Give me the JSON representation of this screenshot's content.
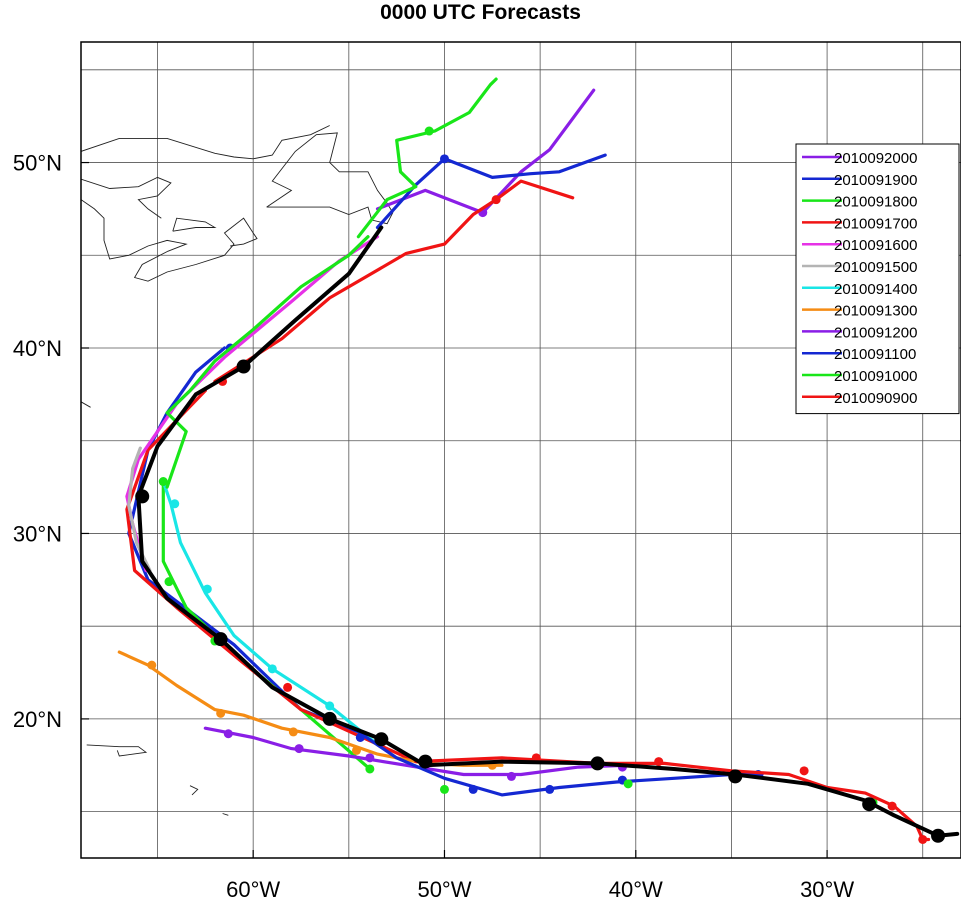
{
  "chart_data": {
    "type": "line",
    "title": "0000 UTC Forecasts",
    "xlim": [
      -69,
      -23
    ],
    "ylim": [
      12.5,
      56.5
    ],
    "x_ticks": [
      {
        "value": -60,
        "label": "60°W"
      },
      {
        "value": -50,
        "label": "50°W"
      },
      {
        "value": -40,
        "label": "40°W"
      },
      {
        "value": -30,
        "label": "30°W"
      }
    ],
    "y_ticks": [
      {
        "value": 20,
        "label": "20°N"
      },
      {
        "value": 30,
        "label": "30°N"
      },
      {
        "value": 40,
        "label": "40°N"
      },
      {
        "value": 50,
        "label": "50°N"
      }
    ],
    "grid": true,
    "legend_position": "top-right",
    "series": [
      {
        "name": "2010092000",
        "color": "#8a1ee6",
        "points": [
          [
            -53.5,
            47.5
          ],
          [
            -51,
            48.5
          ],
          [
            -48,
            47.3
          ],
          [
            -46,
            49.5
          ],
          [
            -44.5,
            50.7
          ],
          [
            -42.2,
            53.9
          ]
        ],
        "markers": [
          [
            -48,
            47.3
          ]
        ]
      },
      {
        "name": "2010091900",
        "color": "#1428d2",
        "points": [
          [
            -53.5,
            46.5
          ],
          [
            -51.5,
            48.8
          ],
          [
            -50,
            50.2
          ],
          [
            -47.5,
            49.2
          ],
          [
            -45.5,
            49.4
          ],
          [
            -44,
            49.5
          ],
          [
            -41.6,
            50.4
          ]
        ],
        "markers": [
          [
            -50,
            50.2
          ]
        ]
      },
      {
        "name": "2010091800",
        "color": "#19e619",
        "points": [
          [
            -54.5,
            46
          ],
          [
            -53,
            48
          ],
          [
            -51.5,
            48.7
          ],
          [
            -52.3,
            49.5
          ],
          [
            -52.5,
            51.2
          ],
          [
            -50.5,
            51.7
          ],
          [
            -48.7,
            52.7
          ],
          [
            -47.6,
            54.2
          ],
          [
            -47.3,
            54.5
          ]
        ],
        "markers": [
          [
            -50.8,
            51.7
          ]
        ]
      },
      {
        "name": "2010091700",
        "color": "#f01414",
        "points": [
          [
            -62,
            38.2
          ],
          [
            -58.5,
            40.5
          ],
          [
            -56,
            42.7
          ],
          [
            -52,
            45.1
          ],
          [
            -50,
            45.6
          ],
          [
            -48.5,
            47.2
          ],
          [
            -47.3,
            48
          ],
          [
            -46,
            49
          ],
          [
            -43.3,
            48.1
          ]
        ],
        "markers": [
          [
            -61.6,
            38.2
          ],
          [
            -47.3,
            48
          ]
        ]
      },
      {
        "name": "2010091600",
        "color": "#e632e6",
        "points": [
          [
            -66.3,
            30.5
          ],
          [
            -66.6,
            32
          ],
          [
            -66,
            34
          ],
          [
            -64,
            37
          ],
          [
            -61.5,
            39.5
          ],
          [
            -58,
            42.5
          ],
          [
            -55.5,
            44.7
          ],
          [
            -53.5,
            46
          ]
        ],
        "markers": []
      },
      {
        "name": "2010091500",
        "color": "#b4b4b4",
        "points": [
          [
            -65.4,
            28
          ],
          [
            -66.1,
            29.5
          ],
          [
            -66.5,
            31.5
          ],
          [
            -66.3,
            33.5
          ],
          [
            -65.9,
            34.6
          ]
        ],
        "markers": []
      },
      {
        "name": "2010091400",
        "color": "#19e6e6",
        "points": [
          [
            -53.6,
            18.7
          ],
          [
            -56,
            20.7
          ],
          [
            -59,
            22.7
          ],
          [
            -61,
            24.5
          ],
          [
            -62.5,
            26.8
          ],
          [
            -63.8,
            29.5
          ],
          [
            -64.3,
            31.6
          ],
          [
            -64.7,
            32.8
          ]
        ],
        "markers": [
          [
            -56,
            20.7
          ],
          [
            -59,
            22.7
          ],
          [
            -62.4,
            27
          ],
          [
            -64.1,
            31.6
          ]
        ]
      },
      {
        "name": "2010091300",
        "color": "#f58c14",
        "points": [
          [
            -67,
            23.6
          ],
          [
            -65.5,
            22.9
          ],
          [
            -64,
            21.8
          ],
          [
            -62,
            20.5
          ],
          [
            -60.5,
            20.2
          ],
          [
            -58.5,
            19.5
          ],
          [
            -56,
            19
          ],
          [
            -53.5,
            18.1
          ],
          [
            -51,
            17.6
          ],
          [
            -49,
            17.5
          ],
          [
            -47,
            17.5
          ]
        ],
        "markers": [
          [
            -65.3,
            22.9
          ],
          [
            -61.7,
            20.3
          ],
          [
            -57.9,
            19.3
          ],
          [
            -54.6,
            18.3
          ],
          [
            -47.5,
            17.5
          ]
        ]
      },
      {
        "name": "2010091200",
        "color": "#8a1ee6",
        "points": [
          [
            -62.5,
            19.5
          ],
          [
            -60,
            19
          ],
          [
            -58,
            18.4
          ],
          [
            -55,
            18
          ],
          [
            -52,
            17.5
          ],
          [
            -49,
            17
          ],
          [
            -46,
            17
          ],
          [
            -43,
            17.4
          ],
          [
            -40.5,
            17.5
          ]
        ],
        "markers": [
          [
            -61.3,
            19.2
          ],
          [
            -57.6,
            18.4
          ],
          [
            -53.9,
            17.9
          ],
          [
            -46.5,
            16.9
          ],
          [
            -40.7,
            17.4
          ]
        ]
      },
      {
        "name": "2010091100",
        "color": "#1428d2",
        "points": [
          [
            -54.5,
            19.3
          ],
          [
            -52.5,
            17.9
          ],
          [
            -50,
            16.8
          ],
          [
            -47,
            15.9
          ],
          [
            -44,
            16.3
          ],
          [
            -41,
            16.6
          ],
          [
            -38,
            16.8
          ],
          [
            -35,
            17
          ],
          [
            -33.4,
            17
          ]
        ],
        "markers": [
          [
            -54.4,
            19
          ],
          [
            -48.5,
            16.2
          ],
          [
            -44.5,
            16.2
          ],
          [
            -40.7,
            16.7
          ],
          [
            -33.6,
            17
          ]
        ]
      },
      {
        "name": "2010091000",
        "color": "#19e619",
        "points": [
          [
            -64.5,
            32.5
          ],
          [
            -63.5,
            35.5
          ],
          [
            -64.5,
            36.5
          ],
          [
            -63.3,
            37.7
          ],
          [
            -62,
            39.3
          ],
          [
            -60,
            41
          ],
          [
            -57.5,
            43.3
          ],
          [
            -55,
            45
          ],
          [
            -54,
            46
          ]
        ],
        "markers": [
          [
            -64.7,
            32.8
          ],
          [
            -64.4,
            27.4
          ],
          [
            -62,
            24.2
          ],
          [
            -53.9,
            17.3
          ],
          [
            -50,
            16.2
          ],
          [
            -40.4,
            16.5
          ],
          [
            -27.6,
            15.5
          ]
        ]
      },
      {
        "name": "2010090900",
        "color": "#f01414",
        "points": [
          [
            -51.5,
            17.7
          ],
          [
            -47,
            17.9
          ],
          [
            -42,
            17.6
          ],
          [
            -38.5,
            17.6
          ],
          [
            -35,
            17.2
          ],
          [
            -32,
            17
          ],
          [
            -30,
            16.3
          ],
          [
            -28,
            16
          ],
          [
            -26.5,
            15.3
          ],
          [
            -25.3,
            14.2
          ],
          [
            -25,
            13.5
          ],
          [
            -24.7,
            13.5
          ]
        ],
        "markers": [
          [
            -51,
            17.7
          ],
          [
            -45.2,
            17.9
          ],
          [
            -38.8,
            17.7
          ],
          [
            -31.2,
            17.2
          ],
          [
            -26.6,
            15.3
          ],
          [
            -25,
            13.5
          ]
        ]
      }
    ],
    "extra_tracks": [
      {
        "series": "2010091100",
        "points": [
          [
            -54.5,
            19.3
          ],
          [
            -57.5,
            20.5
          ],
          [
            -61,
            24
          ],
          [
            -65.5,
            27.5
          ],
          [
            -66.5,
            30
          ],
          [
            -65.5,
            34.5
          ],
          [
            -64.5,
            36.5
          ],
          [
            -63,
            38.7
          ],
          [
            -61.5,
            40
          ]
        ],
        "markers": [
          [
            -61.2,
            40
          ]
        ]
      },
      {
        "series": "2010091000",
        "points": [
          [
            -53.9,
            17.3
          ],
          [
            -57.5,
            20.5
          ],
          [
            -61,
            23.5
          ],
          [
            -63.5,
            26
          ],
          [
            -64.7,
            28.5
          ],
          [
            -64.7,
            32.8
          ]
        ],
        "markers": []
      },
      {
        "series": "2010090900",
        "points": [
          [
            -51.5,
            17.7
          ],
          [
            -57.5,
            20.5
          ],
          [
            -60.5,
            23
          ],
          [
            -64,
            26
          ],
          [
            -66.2,
            28
          ],
          [
            -66.6,
            31.3
          ],
          [
            -65.5,
            34.5
          ],
          [
            -62.5,
            37.7
          ]
        ],
        "markers": [
          [
            -58.2,
            21.7
          ]
        ]
      },
      {
        "series": "2010091600",
        "points": [
          [
            -66.3,
            30.5
          ],
          [
            -65.6,
            28
          ]
        ],
        "markers": []
      }
    ],
    "best_track": {
      "color": "#000000",
      "points": [
        [
          -23.2,
          13.8
        ],
        [
          -24.2,
          13.7
        ],
        [
          -26.5,
          14.8
        ],
        [
          -28,
          15.6
        ],
        [
          -31,
          16.5
        ],
        [
          -34.8,
          17
        ],
        [
          -38,
          17.3
        ],
        [
          -42,
          17.6
        ],
        [
          -47,
          17.7
        ],
        [
          -51,
          17.5
        ],
        [
          -53.3,
          18.9
        ],
        [
          -56,
          20
        ],
        [
          -59,
          21.7
        ],
        [
          -61.7,
          24.3
        ],
        [
          -64.5,
          26.5
        ],
        [
          -65.8,
          28.5
        ],
        [
          -66,
          32
        ],
        [
          -65,
          34.7
        ],
        [
          -63,
          37.5
        ],
        [
          -60.5,
          39
        ],
        [
          -57.8,
          41.5
        ],
        [
          -55,
          44
        ],
        [
          -53.3,
          46.5
        ]
      ],
      "markers": [
        [
          -24.2,
          13.7
        ],
        [
          -27.8,
          15.4
        ],
        [
          -34.8,
          16.9
        ],
        [
          -42,
          17.6
        ],
        [
          -51,
          17.7
        ],
        [
          -53.3,
          18.9
        ],
        [
          -56,
          20
        ],
        [
          -61.7,
          24.3
        ],
        [
          -65.8,
          32
        ],
        [
          -60.5,
          39
        ]
      ]
    },
    "coastlines": [
      [
        [
          -69,
          50.6
        ],
        [
          -67,
          51.3
        ],
        [
          -64.5,
          51.3
        ],
        [
          -62,
          50.5
        ],
        [
          -61,
          50.3
        ],
        [
          -60,
          50.2
        ],
        [
          -59,
          50.4
        ],
        [
          -58.5,
          51.2
        ],
        [
          -57,
          51.5
        ],
        [
          -56,
          52
        ]
      ],
      [
        [
          -69,
          49.1
        ],
        [
          -67.5,
          48.6
        ],
        [
          -66,
          48.7
        ],
        [
          -65,
          49.2
        ],
        [
          -64.3,
          48.9
        ],
        [
          -65,
          48.2
        ],
        [
          -66,
          48
        ],
        [
          -65.5,
          47.5
        ],
        [
          -64.8,
          47
        ]
      ],
      [
        [
          -69,
          48
        ],
        [
          -68.3,
          47.5
        ],
        [
          -67.8,
          47
        ],
        [
          -67.8,
          45.8
        ],
        [
          -67.5,
          44.8
        ],
        [
          -66.5,
          45
        ],
        [
          -65.5,
          45.5
        ],
        [
          -64.5,
          45.8
        ],
        [
          -63.5,
          45.6
        ],
        [
          -64.5,
          45.2
        ]
      ],
      [
        [
          -64.5,
          45.2
        ],
        [
          -65.8,
          44.5
        ],
        [
          -66.2,
          43.8
        ],
        [
          -65.5,
          43.6
        ],
        [
          -64.5,
          44.1
        ],
        [
          -63,
          44.5
        ],
        [
          -61.5,
          45
        ],
        [
          -61,
          45.6
        ],
        [
          -61.5,
          46.2
        ],
        [
          -60.5,
          47
        ],
        [
          -60,
          46.2
        ],
        [
          -59.8,
          45.9
        ],
        [
          -60.5,
          45.6
        ],
        [
          -61.2,
          45.5
        ]
      ],
      [
        [
          -64.2,
          46.3
        ],
        [
          -63,
          46.5
        ],
        [
          -62,
          46.5
        ],
        [
          -62.5,
          46.8
        ],
        [
          -64,
          47
        ],
        [
          -64.2,
          46.3
        ]
      ],
      [
        [
          -59.3,
          47.6
        ],
        [
          -58,
          48.5
        ],
        [
          -59,
          49
        ],
        [
          -57.8,
          50.6
        ],
        [
          -56.7,
          51.5
        ],
        [
          -55.6,
          51.6
        ],
        [
          -56,
          50
        ],
        [
          -55.5,
          49.5
        ],
        [
          -54,
          49.5
        ],
        [
          -53.5,
          48.5
        ],
        [
          -53,
          47.8
        ],
        [
          -52.7,
          47.3
        ],
        [
          -53,
          46.7
        ],
        [
          -53.8,
          46.9
        ],
        [
          -54,
          47.6
        ],
        [
          -55,
          47.2
        ],
        [
          -56,
          47.6
        ],
        [
          -57,
          47.6
        ],
        [
          -58,
          47.6
        ],
        [
          -59.3,
          47.6
        ]
      ],
      [
        [
          -69,
          37.1
        ],
        [
          -68.5,
          36.8
        ]
      ],
      [
        [
          -68.7,
          18.6
        ],
        [
          -67,
          18.5
        ],
        [
          -66,
          18.5
        ],
        [
          -65.6,
          18.2
        ],
        [
          -67,
          18
        ],
        [
          -67.1,
          18.3
        ]
      ],
      [
        [
          -63.3,
          16.4
        ],
        [
          -62.9,
          16.2
        ],
        [
          -63.2,
          15.9
        ]
      ],
      [
        [
          -61.6,
          14.9
        ],
        [
          -61.3,
          14.8
        ]
      ]
    ]
  }
}
